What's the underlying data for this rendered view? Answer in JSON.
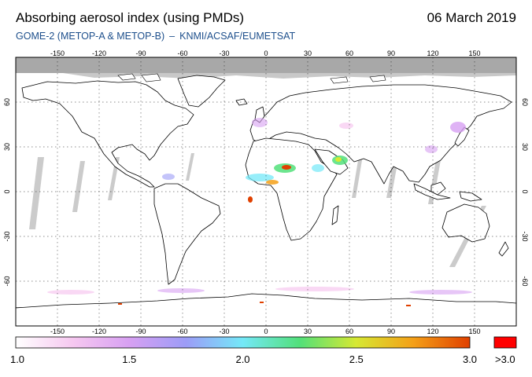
{
  "header": {
    "title": "Absorbing aerosol index (using PMDs)",
    "date": "06 March 2019",
    "subtitle_instrument": "GOME-2 (METOP-A & METOP-B)",
    "subtitle_separator": "–",
    "subtitle_source": "KNMI/ACSAF/EUMETSAT"
  },
  "map": {
    "projection": "equirectangular",
    "lon_range": [
      -180,
      180
    ],
    "lat_range": [
      -90,
      90
    ],
    "lon_ticks": [
      "-150",
      "-120",
      "-90",
      "-60",
      "-30",
      "0",
      "30",
      "60",
      "90",
      "120",
      "150"
    ],
    "lon_tick_values": [
      -150,
      -120,
      -90,
      -60,
      -30,
      0,
      30,
      60,
      90,
      120,
      150
    ],
    "lat_ticks_left": [
      "60",
      "30",
      "0",
      "-30",
      "-60"
    ],
    "lat_ticks_right": [
      "60",
      "30",
      "0",
      "-30",
      "-60"
    ],
    "lat_tick_values": [
      60,
      30,
      0,
      -30,
      -60
    ],
    "grid": "dotted",
    "colors": {
      "no_data": "#a8a8a8",
      "gap": "#c6c6c6",
      "coast": "#000000"
    }
  },
  "colorbar": {
    "min": 1.0,
    "max": 3.0,
    "labels": [
      "1.0",
      "1.5",
      "2.0",
      "2.5",
      "3.0"
    ],
    "label_values": [
      1.0,
      1.5,
      2.0,
      2.5,
      3.0
    ],
    "over_label": ">3.0",
    "over_color": "#ff0000",
    "gradient": [
      "#ffffff",
      "#f6c8f0",
      "#d7a0f2",
      "#9c9cf7",
      "#74e8f8",
      "#52e07a",
      "#d6e832",
      "#f4a018",
      "#e04000"
    ]
  }
}
